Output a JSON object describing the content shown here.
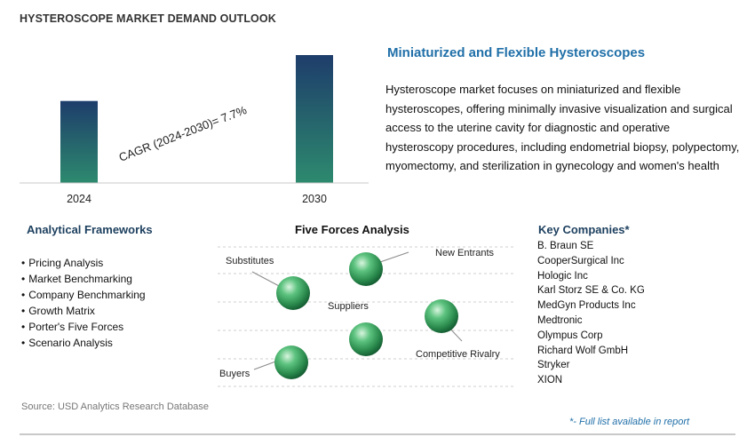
{
  "report_title": "HYSTEROSCOPE MARKET DEMAND OUTLOOK",
  "chart_data": {
    "type": "bar",
    "categories": [
      "2024",
      "2030"
    ],
    "values": [
      1.0,
      1.56
    ],
    "annotation": "CAGR (2024-2030)=    7.7%",
    "title": "",
    "xlabel": "",
    "ylabel": "",
    "colors": [
      "#2d8a6e",
      "#1e3d6b"
    ]
  },
  "highlight": {
    "title": "Miniaturized and Flexible Hysteroscopes",
    "text": "Hysteroscope market focuses on miniaturized and flexible hysteroscopes, offering minimally invasive visualization and surgical access to the uterine cavity for diagnostic and operative hysteroscopy procedures, including endometrial biopsy, polypectomy, myomectomy, and sterilization in gynecology and women's health settings across hospitals and clinics."
  },
  "frameworks": {
    "title": "Analytical Frameworks",
    "items": [
      "Pricing Analysis",
      "Market Benchmarking",
      "Company Benchmarking",
      "Growth Matrix",
      "Porter's Five Forces",
      "Scenario Analysis"
    ]
  },
  "five_forces": {
    "title": "Five Forces Analysis",
    "labels": {
      "substitutes": "Substitutes",
      "new_entrants": "New Entrants",
      "suppliers": "Suppliers",
      "competitive_rivalry": "Competitive Rivalry",
      "buyers": "Buyers"
    },
    "sphere_color": "#2e9e5a"
  },
  "companies": {
    "title": "Key Companies*",
    "items": [
      "B. Braun SE",
      "CooperSurgical Inc",
      "Hologic Inc",
      "Karl Storz SE & Co. KG",
      "MedGyn Products Inc",
      "Medtronic",
      "Olympus Corp",
      "Richard Wolf GmbH",
      "Stryker",
      "XION"
    ]
  },
  "source": "Source: USD Analytics Research Database",
  "footnote": "*- Full list available in report"
}
